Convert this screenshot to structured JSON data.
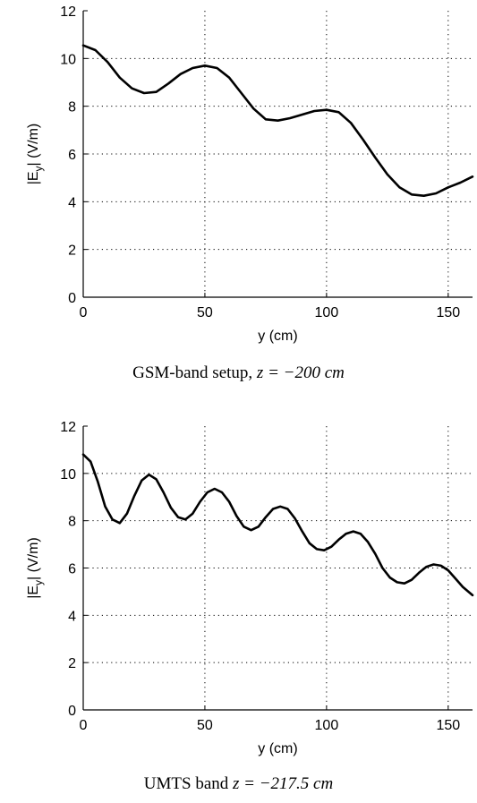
{
  "chart_data": [
    {
      "type": "line",
      "caption": {
        "text": "GSM-band setup, ",
        "math": "z = −200 cm"
      },
      "xlabel": "y (cm)",
      "ylabel": "|E",
      "ylabel_sub": "y",
      "ylabel_tail": "| (V/m)",
      "xlim": [
        0,
        160
      ],
      "ylim": [
        0,
        12
      ],
      "xticks": [
        0,
        50,
        100,
        150
      ],
      "yticks": [
        0,
        2,
        4,
        6,
        8,
        10,
        12
      ],
      "grid": true,
      "series": [
        {
          "color": "#000000",
          "x": [
            0,
            5,
            10,
            15,
            20,
            25,
            30,
            35,
            40,
            45,
            50,
            55,
            60,
            65,
            70,
            75,
            80,
            85,
            90,
            95,
            100,
            105,
            110,
            115,
            120,
            125,
            130,
            135,
            140,
            145,
            150,
            155,
            160
          ],
          "y": [
            10.55,
            10.35,
            9.85,
            9.2,
            8.75,
            8.55,
            8.6,
            8.95,
            9.35,
            9.6,
            9.7,
            9.6,
            9.2,
            8.55,
            7.9,
            7.45,
            7.4,
            7.5,
            7.65,
            7.8,
            7.85,
            7.75,
            7.3,
            6.6,
            5.85,
            5.15,
            4.6,
            4.3,
            4.25,
            4.35,
            4.6,
            4.8,
            5.05
          ]
        }
      ]
    },
    {
      "type": "line",
      "caption": {
        "text": "UMTS band ",
        "math": "z = −217.5 cm"
      },
      "xlabel": "y (cm)",
      "ylabel": "|E",
      "ylabel_sub": "y",
      "ylabel_tail": "| (V/m)",
      "xlim": [
        0,
        160
      ],
      "ylim": [
        0,
        12
      ],
      "xticks": [
        0,
        50,
        100,
        150
      ],
      "yticks": [
        0,
        2,
        4,
        6,
        8,
        10,
        12
      ],
      "grid": true,
      "series": [
        {
          "color": "#000000",
          "x": [
            0,
            3,
            6,
            9,
            12,
            15,
            18,
            21,
            24,
            27,
            30,
            33,
            36,
            39,
            42,
            45,
            48,
            51,
            54,
            57,
            60,
            63,
            66,
            69,
            72,
            75,
            78,
            81,
            84,
            87,
            90,
            93,
            96,
            99,
            102,
            105,
            108,
            111,
            114,
            117,
            120,
            123,
            126,
            129,
            132,
            135,
            138,
            141,
            144,
            147,
            150,
            153,
            156,
            160
          ],
          "y": [
            10.8,
            10.5,
            9.65,
            8.6,
            8.05,
            7.9,
            8.3,
            9.05,
            9.7,
            9.95,
            9.75,
            9.2,
            8.55,
            8.15,
            8.05,
            8.3,
            8.8,
            9.2,
            9.35,
            9.2,
            8.8,
            8.2,
            7.75,
            7.6,
            7.75,
            8.15,
            8.5,
            8.6,
            8.5,
            8.1,
            7.55,
            7.05,
            6.8,
            6.75,
            6.9,
            7.2,
            7.45,
            7.55,
            7.45,
            7.1,
            6.6,
            6.0,
            5.6,
            5.4,
            5.35,
            5.5,
            5.8,
            6.05,
            6.15,
            6.1,
            5.9,
            5.55,
            5.2,
            4.85
          ]
        }
      ]
    }
  ]
}
